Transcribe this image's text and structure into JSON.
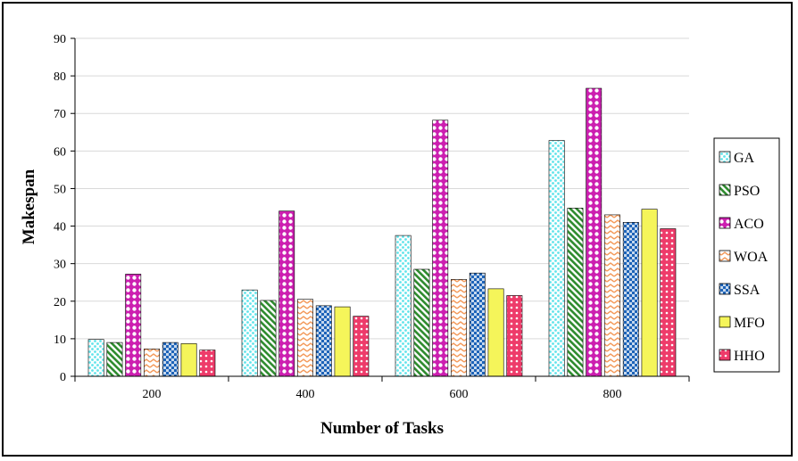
{
  "chart_data": {
    "type": "bar",
    "title": "",
    "xlabel": "Number of Tasks",
    "ylabel": "Makespan",
    "categories": [
      "200",
      "400",
      "600",
      "800"
    ],
    "ylim": [
      0,
      90
    ],
    "yticks": [
      0,
      10,
      20,
      30,
      40,
      50,
      60,
      70,
      80,
      90
    ],
    "grid": true,
    "legend_position": "right",
    "series": [
      {
        "name": "GA",
        "color": "#5fe3ea",
        "pattern": "dots-diagonal",
        "values": [
          9.8,
          23.0,
          37.5,
          62.8
        ]
      },
      {
        "name": "PSO",
        "color": "#2e8b2e",
        "pattern": "diagonal-stripes",
        "values": [
          9.0,
          20.2,
          28.5,
          44.8
        ]
      },
      {
        "name": "ACO",
        "color": "#cc1fb0",
        "pattern": "circles",
        "values": [
          27.2,
          44.0,
          68.2,
          76.7
        ]
      },
      {
        "name": "WOA",
        "color": "#f39a5b",
        "pattern": "zigzag",
        "values": [
          7.3,
          20.5,
          25.8,
          43.0
        ]
      },
      {
        "name": "SSA",
        "color": "#1d63b8",
        "pattern": "checker",
        "values": [
          9.0,
          18.8,
          27.5,
          41.0
        ]
      },
      {
        "name": "MFO",
        "color": "#f5f55a",
        "pattern": "solid",
        "values": [
          8.7,
          18.5,
          23.3,
          44.5
        ]
      },
      {
        "name": "HHO",
        "color": "#ee3b6a",
        "pattern": "crosshatch-dots",
        "values": [
          7.0,
          16.0,
          21.5,
          39.3
        ]
      }
    ]
  }
}
